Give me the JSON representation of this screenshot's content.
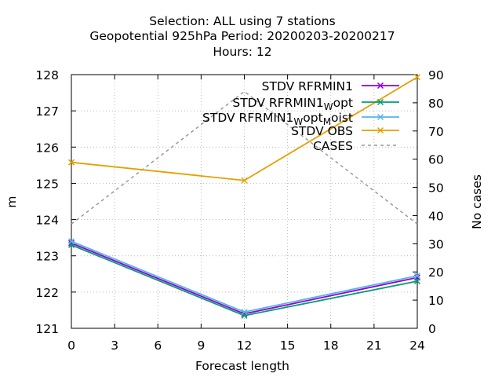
{
  "chart_data": {
    "type": "line",
    "title_lines": [
      "Selection: ALL using      7 stations",
      "Geopotential 925hPa   Period: 20200203-20200217",
      "Hours:  12"
    ],
    "xlabel": "Forecast length",
    "ylabel": "m",
    "y2label": "No cases",
    "xlim": [
      0,
      24
    ],
    "ylim": [
      121,
      128
    ],
    "y2lim": [
      0,
      90
    ],
    "xticks": [
      0,
      3,
      6,
      9,
      12,
      15,
      18,
      21,
      24
    ],
    "yticks": [
      121,
      122,
      123,
      124,
      125,
      126,
      127,
      128
    ],
    "y2ticks": [
      0,
      10,
      20,
      30,
      40,
      50,
      60,
      70,
      80,
      90
    ],
    "grid": true,
    "legend_position": "top-right",
    "x": [
      0,
      12,
      24
    ],
    "series": [
      {
        "name": "STDV RFRMIN1",
        "legend_parts": [
          [
            "STDV RFRMIN1",
            "n"
          ]
        ],
        "axis": "y",
        "values": [
          123.35,
          121.4,
          122.4
        ],
        "color": "#9400d3",
        "marker": "x",
        "dash": ""
      },
      {
        "name": "STDV RFRMIN1_W opt",
        "legend_parts": [
          [
            "STDV RFRMIN1",
            "n"
          ],
          [
            "W",
            "sub"
          ],
          [
            "opt",
            "n"
          ]
        ],
        "axis": "y",
        "values": [
          123.3,
          121.35,
          122.3
        ],
        "color": "#009e73",
        "marker": "x",
        "dash": ""
      },
      {
        "name": "STDV RFRMIN1_W opt_M oist",
        "legend_parts": [
          [
            "STDV RFRMIN1",
            "n"
          ],
          [
            "W",
            "sub"
          ],
          [
            "opt",
            "n"
          ],
          [
            "M",
            "sub"
          ],
          [
            "oist",
            "n"
          ]
        ],
        "axis": "y",
        "values": [
          123.4,
          121.45,
          122.45
        ],
        "color": "#56b4e9",
        "marker": "x",
        "dash": ""
      },
      {
        "name": "STDV OBS",
        "legend_parts": [
          [
            "STDV OBS",
            "n"
          ]
        ],
        "axis": "y",
        "values": [
          125.58,
          125.08,
          127.93
        ],
        "color": "#e69f00",
        "marker": "x",
        "dash": ""
      },
      {
        "name": "CASES",
        "legend_parts": [
          [
            "CASES",
            "n"
          ]
        ],
        "axis": "y2",
        "values": [
          37,
          84,
          37
        ],
        "color": "#999999",
        "marker": "",
        "dash": "4,4"
      }
    ]
  }
}
